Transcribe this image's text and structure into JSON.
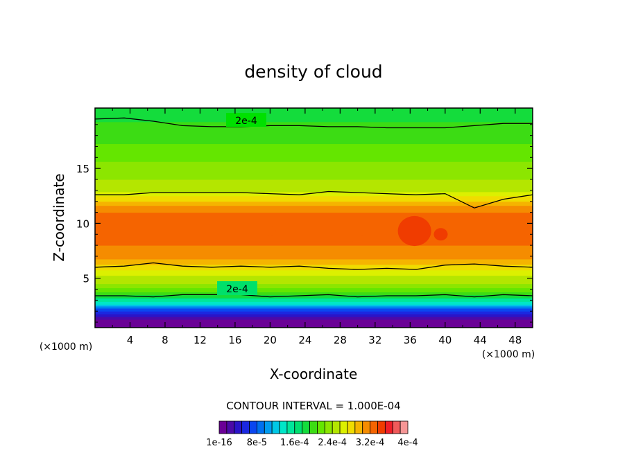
{
  "chart_data": {
    "type": "heatmap",
    "title": "density of cloud",
    "xlabel": "X-coordinate",
    "ylabel": "Z-coordinate",
    "x_unit": "(×1000 m)",
    "y_unit": "(×1000 m)",
    "xlim": [
      0,
      50
    ],
    "ylim": [
      0.5,
      20.5
    ],
    "x_ticks": [
      4,
      8,
      12,
      16,
      20,
      24,
      28,
      32,
      36,
      40,
      44,
      48
    ],
    "y_ticks": [
      5,
      10,
      15
    ],
    "contour_interval_text": "CONTOUR INTERVAL = 1.000E-04",
    "contour_line_label": "2e-4",
    "contour_line_level": 0.0002,
    "colorbar": {
      "min": 1e-16,
      "max": 0.0004,
      "n_bins": 25,
      "tick_labels": [
        "1e-16",
        "8e-5",
        "1.6e-4",
        "2.4e-4",
        "3.2e-4",
        "4e-4"
      ],
      "colors": [
        "#6a0096",
        "#4b0aa8",
        "#2a14c8",
        "#1a28e0",
        "#0a46f0",
        "#0070f0",
        "#009cf0",
        "#00c8e6",
        "#00e6c8",
        "#00e69a",
        "#00e070",
        "#14dc3c",
        "#3cdc14",
        "#64e600",
        "#8ce600",
        "#b4e600",
        "#dcf000",
        "#f0dc00",
        "#f5b400",
        "#f58c00",
        "#f56400",
        "#f03c00",
        "#f01e28",
        "#f05a5a",
        "#f59696"
      ]
    },
    "profile": {
      "z": [
        0.5,
        1.0,
        1.3,
        1.6,
        2.0,
        2.4,
        2.8,
        3.2,
        3.6,
        4.0,
        4.5,
        5.0,
        5.5,
        6.0,
        6.5,
        7.0,
        8.0,
        9.0,
        10.0,
        11.0,
        11.5,
        12.0,
        12.5,
        13.0,
        14.0,
        15.0,
        16.0,
        17.0,
        18.0,
        19.0,
        19.5,
        20.5
      ],
      "density": [
        0.0,
        8e-06,
        2e-05,
        4e-05,
        6e-05,
        0.0001,
        0.00014,
        0.00017,
        0.0002,
        0.00022,
        0.00024,
        0.00025,
        0.00026,
        0.00028,
        0.0003,
        0.00031,
        0.00032,
        0.00033,
        0.00033,
        0.00032,
        0.00031,
        0.00029,
        0.00027,
        0.00025,
        0.00024,
        0.00023,
        0.00022,
        0.00021,
        0.0002,
        0.000195,
        0.00019,
        0.00018
      ]
    },
    "contour_lines": [
      {
        "z": [
          19.5,
          19.6,
          19.3,
          18.9,
          18.8,
          18.8,
          18.9,
          18.9,
          18.8,
          18.8,
          18.7,
          18.7,
          18.7,
          18.9,
          19.1,
          19.1
        ],
        "label_x": 17.5
      },
      {
        "z": [
          12.6,
          12.6,
          12.8,
          12.8,
          12.8,
          12.8,
          12.7,
          12.6,
          12.9,
          12.8,
          12.7,
          12.6,
          12.7,
          11.4,
          12.2,
          12.6
        ]
      },
      {
        "z": [
          6.0,
          6.1,
          6.4,
          6.1,
          6.0,
          6.1,
          6.0,
          6.1,
          5.9,
          5.8,
          5.9,
          5.8,
          6.2,
          6.3,
          6.1,
          6.0
        ]
      },
      {
        "z": [
          3.4,
          3.4,
          3.3,
          3.5,
          3.5,
          3.5,
          3.3,
          3.4,
          3.5,
          3.3,
          3.4,
          3.4,
          3.5,
          3.3,
          3.5,
          3.4
        ],
        "label_x": 16.5
      }
    ],
    "maxima": [
      {
        "x": 36.5,
        "z": 9.3,
        "value": 0.00034
      },
      {
        "x": 39.5,
        "z": 9.0,
        "value": 0.00034
      },
      {
        "x": 30.0,
        "z": 8.6,
        "value": 0.000335
      },
      {
        "x": 20.0,
        "z": 9.3,
        "value": 0.000332
      }
    ]
  }
}
